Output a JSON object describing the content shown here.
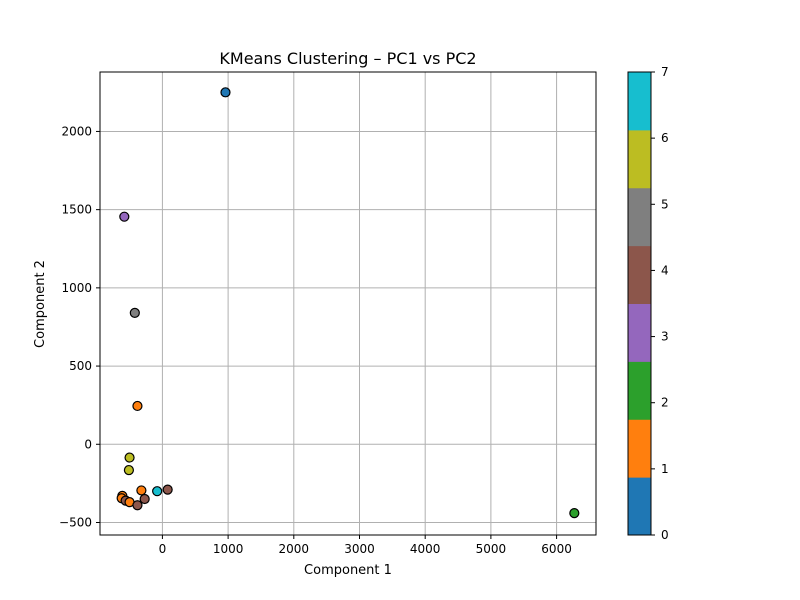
{
  "chart_data": {
    "type": "scatter",
    "title": "KMeans Clustering – PC1 vs PC2",
    "xlabel": "Component 1",
    "ylabel": "Component 2",
    "xlim": [
      -950,
      6600
    ],
    "ylim": [
      -580,
      2380
    ],
    "xticks": [
      0,
      1000,
      2000,
      3000,
      4000,
      5000,
      6000
    ],
    "yticks": [
      -500,
      0,
      500,
      1000,
      1500,
      2000
    ],
    "grid": true,
    "points": [
      {
        "x": 960,
        "y": 2250,
        "cluster": 0
      },
      {
        "x": -580,
        "y": 1455,
        "cluster": 3
      },
      {
        "x": -420,
        "y": 840,
        "cluster": 5
      },
      {
        "x": -380,
        "y": 245,
        "cluster": 1
      },
      {
        "x": -500,
        "y": -85,
        "cluster": 6
      },
      {
        "x": -510,
        "y": -165,
        "cluster": 6
      },
      {
        "x": -320,
        "y": -295,
        "cluster": 1
      },
      {
        "x": -80,
        "y": -300,
        "cluster": 7
      },
      {
        "x": 80,
        "y": -290,
        "cluster": 4
      },
      {
        "x": -610,
        "y": -330,
        "cluster": 1
      },
      {
        "x": -620,
        "y": -345,
        "cluster": 1
      },
      {
        "x": -560,
        "y": -360,
        "cluster": 4
      },
      {
        "x": -500,
        "y": -370,
        "cluster": 1
      },
      {
        "x": -270,
        "y": -350,
        "cluster": 4
      },
      {
        "x": -380,
        "y": -390,
        "cluster": 4
      },
      {
        "x": 6270,
        "y": -440,
        "cluster": 2
      }
    ],
    "colorbar": {
      "min": 0,
      "max": 7,
      "ticks": [
        "0",
        "1",
        "2",
        "3",
        "4",
        "5",
        "6",
        "7"
      ],
      "colors": [
        "#1f77b4",
        "#ff7f0e",
        "#2ca02c",
        "#9467bd",
        "#8c564b",
        "#7f7f7f",
        "#bcbd22",
        "#17becf"
      ]
    },
    "colors": {
      "0": "#1f77b4",
      "1": "#ff7f0e",
      "2": "#2ca02c",
      "3": "#9467bd",
      "4": "#8c564b",
      "5": "#7f7f7f",
      "6": "#bcbd22",
      "7": "#17becf"
    }
  }
}
